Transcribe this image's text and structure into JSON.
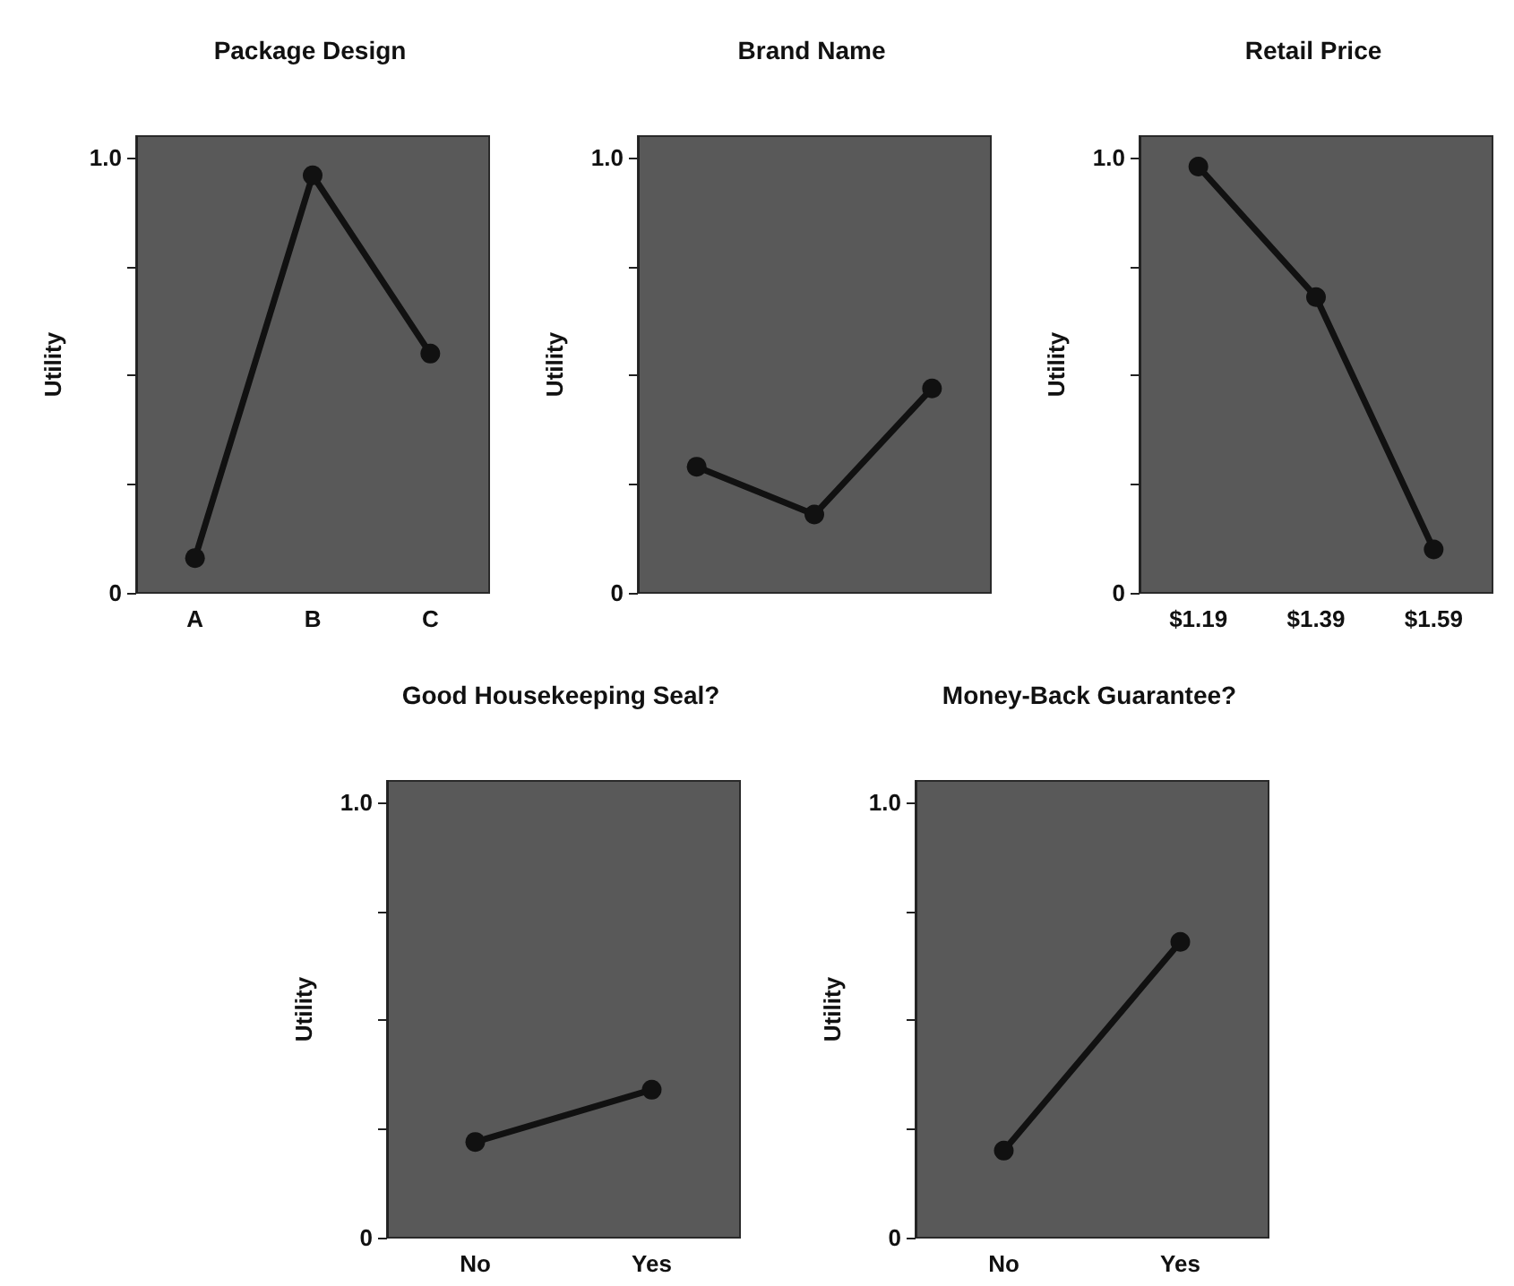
{
  "chart_data": [
    {
      "type": "line",
      "title": "Package Design",
      "ylabel": "Utility",
      "categories": [
        "A",
        "B",
        "C"
      ],
      "values": [
        0.08,
        0.96,
        0.55
      ],
      "color": "#111111",
      "ylim": [
        0,
        1.05
      ],
      "yticks": [
        {
          "value": 0,
          "label": "0"
        },
        {
          "value": 0.25,
          "label": null
        },
        {
          "value": 0.5,
          "label": null
        },
        {
          "value": 0.75,
          "label": null
        },
        {
          "value": 1,
          "label": "1.0"
        }
      ],
      "marker": "circle",
      "grid": false
    },
    {
      "type": "line",
      "title": "Brand Name",
      "ylabel": "Utility",
      "categories": [
        null,
        null,
        null
      ],
      "values": [
        0.29,
        0.18,
        0.47
      ],
      "color": "#111111",
      "ylim": [
        0,
        1.05
      ],
      "yticks": [
        {
          "value": 0,
          "label": "0"
        },
        {
          "value": 0.25,
          "label": null
        },
        {
          "value": 0.5,
          "label": null
        },
        {
          "value": 0.75,
          "label": null
        },
        {
          "value": 1,
          "label": "1.0"
        }
      ],
      "marker": "circle",
      "grid": false
    },
    {
      "type": "line",
      "title": "Retail Price",
      "ylabel": "Utility",
      "categories": [
        "$1.19",
        "$1.39",
        "$1.59"
      ],
      "values": [
        0.98,
        0.68,
        0.1
      ],
      "color": "#111111",
      "ylim": [
        0,
        1.05
      ],
      "yticks": [
        {
          "value": 0,
          "label": "0"
        },
        {
          "value": 0.25,
          "label": null
        },
        {
          "value": 0.5,
          "label": null
        },
        {
          "value": 0.75,
          "label": null
        },
        {
          "value": 1,
          "label": "1.0"
        }
      ],
      "marker": "circle",
      "grid": false
    },
    {
      "type": "line",
      "title": "Good Housekeeping Seal?",
      "ylabel": "Utility",
      "categories": [
        "No",
        "Yes"
      ],
      "values": [
        0.22,
        0.34
      ],
      "color": "#111111",
      "ylim": [
        0,
        1.05
      ],
      "yticks": [
        {
          "value": 0,
          "label": "0"
        },
        {
          "value": 0.25,
          "label": null
        },
        {
          "value": 0.5,
          "label": null
        },
        {
          "value": 0.75,
          "label": null
        },
        {
          "value": 1,
          "label": "1.0"
        }
      ],
      "marker": "circle",
      "grid": false
    },
    {
      "type": "line",
      "title": "Money-Back Guarantee?",
      "ylabel": "Utility",
      "categories": [
        "No",
        "Yes"
      ],
      "values": [
        0.2,
        0.68
      ],
      "color": "#111111",
      "ylim": [
        0,
        1.05
      ],
      "yticks": [
        {
          "value": 0,
          "label": "0"
        },
        {
          "value": 0.25,
          "label": null
        },
        {
          "value": 0.5,
          "label": null
        },
        {
          "value": 0.75,
          "label": null
        },
        {
          "value": 1,
          "label": "1.0"
        }
      ],
      "marker": "circle",
      "grid": false
    }
  ]
}
